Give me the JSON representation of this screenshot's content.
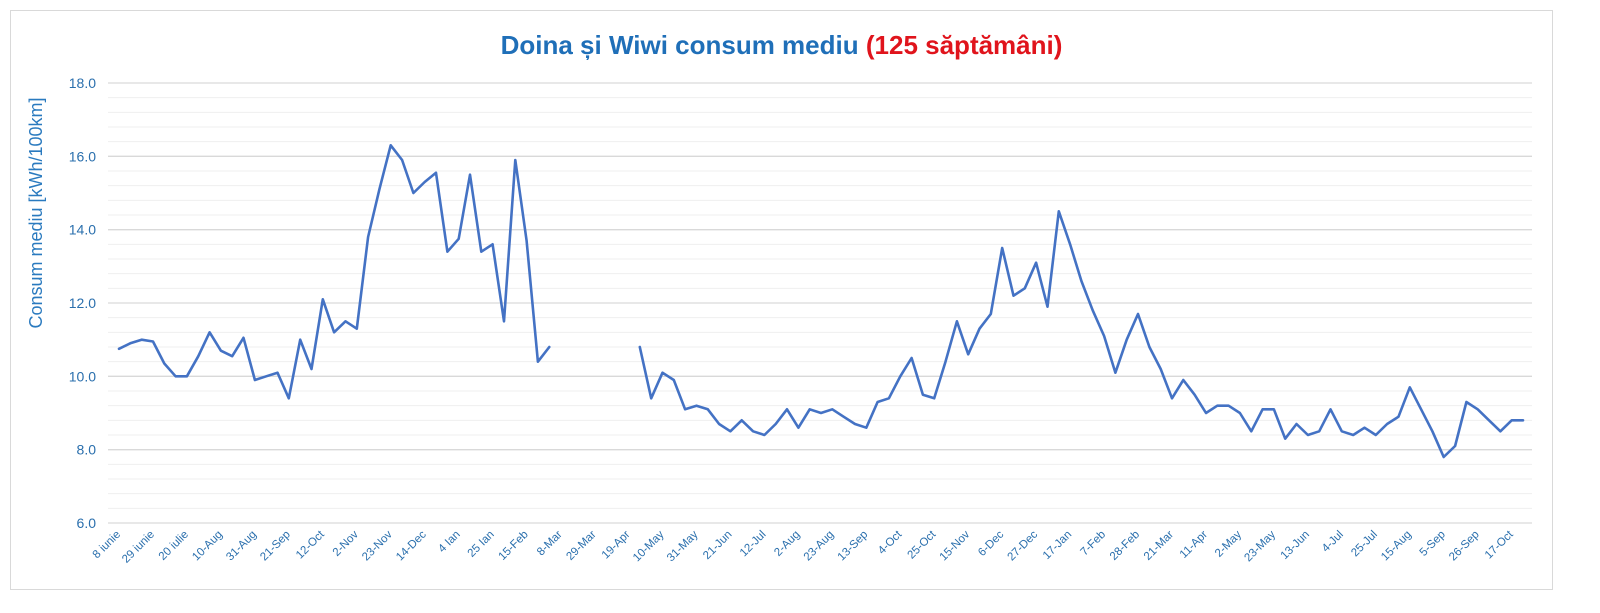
{
  "chart_data": {
    "type": "line",
    "title": "Doina și Wiwi consum mediu",
    "title_highlight": "(125 săptămâni)",
    "ylabel": "Consum mediu [kWh/100km]",
    "xlabel": "",
    "ylim": [
      6,
      18
    ],
    "yticks": [
      "6.0",
      "8.0",
      "10.0",
      "12.0",
      "14.0",
      "16.0",
      "18.0"
    ],
    "minor_grid_step": 0.4,
    "grid": true,
    "x_tick_every": 3,
    "x_tick_labels": [
      "8 iunie",
      "29 iunie",
      "20 iulie",
      "10-Aug",
      "31-Aug",
      "21-Sep",
      "12-Oct",
      "2-Nov",
      "23-Nov",
      "14-Dec",
      "4 Ian",
      "25 Ian",
      "15-Feb",
      "8-Mar",
      "29-Mar",
      "19-Apr",
      "10-May",
      "31-May",
      "21-Jun",
      "12-Jul",
      "2-Aug",
      "23-Aug",
      "13-Sep",
      "4-Oct",
      "25-Oct",
      "15-Nov",
      "6-Dec",
      "27-Dec",
      "17-Jan",
      "7-Feb",
      "28-Feb",
      "21-Mar",
      "11-Apr",
      "2-May",
      "23-May",
      "13-Jun",
      "4-Jul",
      "25-Jul",
      "15-Aug",
      "5-Sep",
      "26-Sep",
      "17-Oct"
    ],
    "series": [
      {
        "name": "Consum mediu",
        "color": "#4472c4",
        "values": [
          10.75,
          10.9,
          11.0,
          10.95,
          10.35,
          10.0,
          10.0,
          10.55,
          11.2,
          10.7,
          10.55,
          11.05,
          9.9,
          10.0,
          10.1,
          9.4,
          11.0,
          10.2,
          12.1,
          11.2,
          11.5,
          11.3,
          13.8,
          15.1,
          16.3,
          15.9,
          15.0,
          15.3,
          15.55,
          13.4,
          13.75,
          15.5,
          13.4,
          13.6,
          11.5,
          15.9,
          13.7,
          10.4,
          10.8,
          null,
          null,
          null,
          null,
          null,
          null,
          null,
          10.8,
          9.4,
          10.1,
          9.9,
          9.1,
          9.2,
          9.1,
          8.7,
          8.5,
          8.8,
          8.5,
          8.4,
          8.7,
          9.1,
          8.6,
          9.1,
          9.0,
          9.1,
          8.9,
          8.7,
          8.6,
          9.3,
          9.4,
          10.0,
          10.5,
          9.5,
          9.4,
          10.4,
          11.5,
          10.6,
          11.3,
          11.7,
          13.5,
          12.2,
          12.4,
          13.1,
          11.9,
          14.5,
          13.6,
          12.6,
          11.8,
          11.1,
          10.1,
          11.0,
          11.7,
          10.8,
          10.2,
          9.4,
          9.9,
          9.5,
          9.0,
          9.2,
          9.2,
          9.0,
          8.5,
          9.1,
          9.1,
          8.3,
          8.7,
          8.4,
          8.5,
          9.1,
          8.5,
          8.4,
          8.6,
          8.4,
          8.7,
          8.9,
          9.7,
          9.1,
          8.5,
          7.8,
          8.1,
          9.3,
          9.1,
          8.8,
          8.5,
          8.8,
          8.8
        ]
      }
    ]
  }
}
